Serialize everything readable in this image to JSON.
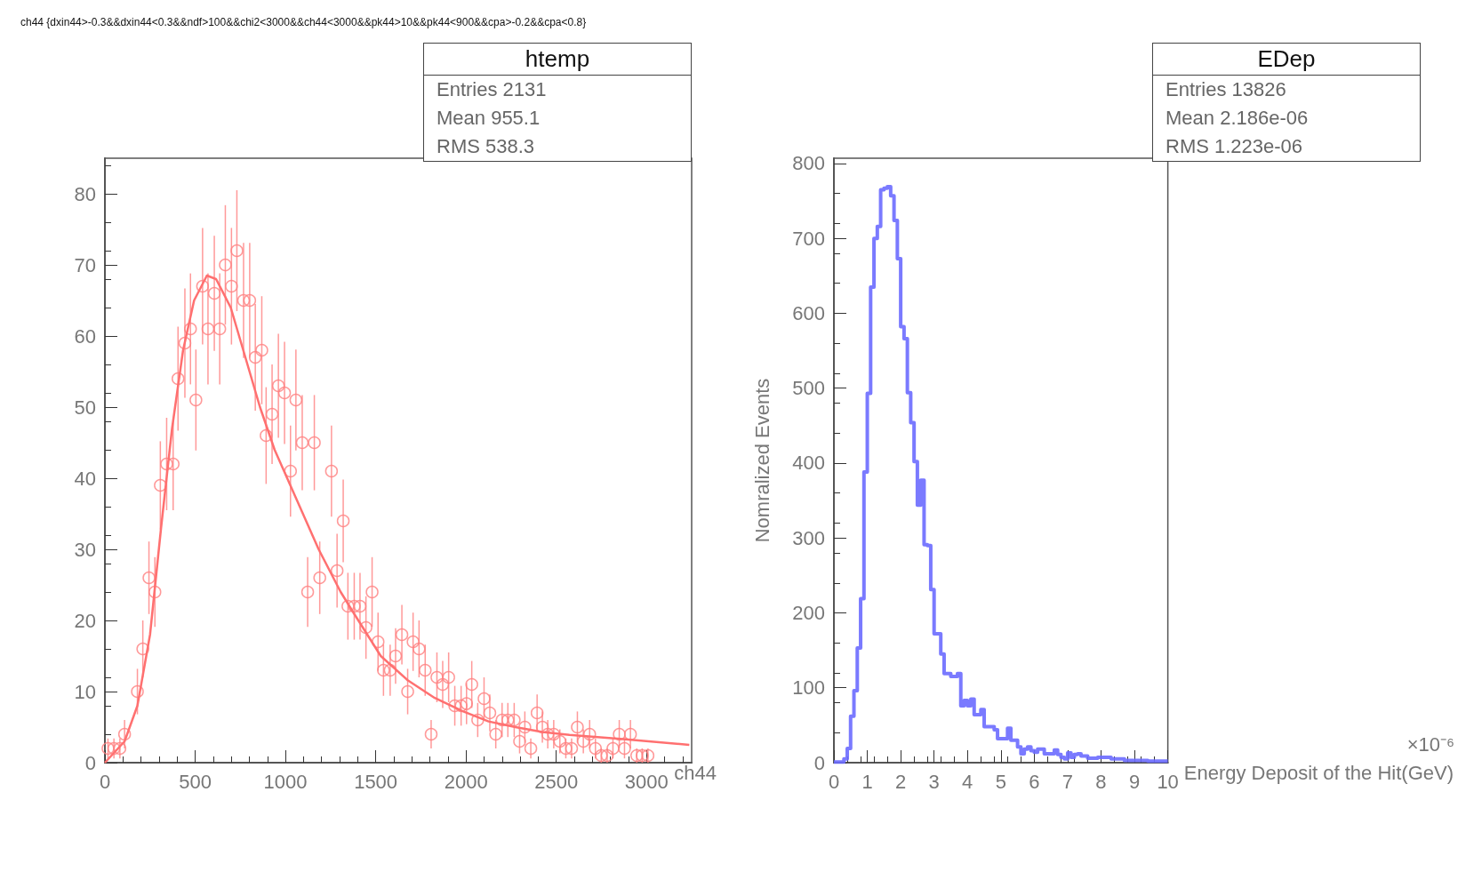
{
  "chart_data": [
    {
      "type": "scatter",
      "title": "ch44 {dxin44>-0.3&&dxin44<0.3&&ndf>100&&chi2<3000&&ch44<3000&&pk44>10&&pk44<900&&cpa>-0.2&&cpa<0.8}",
      "xlabel": "ch44",
      "xlim": [
        0,
        3250
      ],
      "xticks": [
        0,
        500,
        1000,
        1500,
        2000,
        2500,
        3000
      ],
      "ylim": [
        0,
        85
      ],
      "yticks": [
        0,
        10,
        20,
        30,
        40,
        50,
        60,
        70,
        80
      ],
      "annotations": [
        "htemp",
        "Entries 2131",
        "Mean 955.1",
        "RMS 538.3"
      ],
      "series": [
        {
          "type": "scatter",
          "color": "#ff7f7f",
          "marker": "circle",
          "x": [
            17,
            50,
            83,
            109,
            180,
            210,
            244,
            277,
            307,
            342,
            378,
            405,
            443,
            474,
            504,
            541,
            571,
            606,
            636,
            667,
            701,
            731,
            768,
            802,
            833,
            869,
            893,
            926,
            961,
            995,
            1028,
            1058,
            1093,
            1123,
            1160,
            1190,
            1255,
            1286,
            1320,
            1346,
            1381,
            1413,
            1446,
            1480,
            1513,
            1543,
            1580,
            1610,
            1645,
            1677,
            1707,
            1740,
            1774,
            1807,
            1839,
            1871,
            1904,
            1938,
            1973,
            2003,
            2032,
            2065,
            2100,
            2132,
            2165,
            2200,
            2232,
            2267,
            2297,
            2326,
            2359,
            2394,
            2423,
            2453,
            2486,
            2520,
            2553,
            2585,
            2617,
            2650,
            2685,
            2717,
            2749,
            2782,
            2814,
            2849,
            2878,
            2911,
            2946,
            2976,
            3008
          ],
          "values": [
            2,
            2,
            2,
            4,
            10,
            16,
            26,
            24,
            39,
            42,
            42,
            54,
            59,
            61,
            51,
            67,
            61,
            66,
            61,
            70,
            67,
            72,
            65,
            65,
            57,
            58,
            46,
            49,
            53,
            52,
            41,
            51,
            45,
            24,
            45,
            26,
            41,
            27,
            34,
            22,
            22,
            22,
            19,
            24,
            17,
            13,
            13,
            15,
            18,
            10,
            17,
            16,
            13,
            4,
            12,
            11,
            12,
            8,
            8,
            8.3,
            11,
            6,
            9,
            7,
            4,
            6,
            6,
            6,
            3,
            5,
            2,
            7,
            5,
            4,
            4,
            3,
            2,
            2,
            5,
            3,
            4,
            2,
            1,
            1,
            2,
            4,
            2,
            4,
            1,
            1,
            1
          ],
          "errors": [
            1.4,
            1.4,
            1.4,
            2,
            3.2,
            4,
            5.1,
            4.9,
            6.2,
            6.5,
            6.5,
            7.3,
            7.7,
            7.8,
            7.1,
            8.2,
            7.8,
            8.1,
            7.8,
            8.4,
            8.2,
            8.5,
            8.1,
            8.1,
            7.5,
            7.6,
            6.8,
            7,
            7.3,
            7.2,
            6.4,
            7.1,
            6.7,
            4.9,
            6.7,
            5.1,
            6.4,
            5.2,
            5.8,
            4.7,
            4.7,
            4.7,
            4.4,
            4.9,
            4.1,
            3.6,
            3.6,
            3.9,
            4.2,
            3.2,
            4.1,
            4,
            3.6,
            2,
            3.5,
            3.3,
            3.5,
            2.8,
            2.8,
            2.9,
            3.3,
            2.4,
            3,
            2.6,
            2,
            2.4,
            2.4,
            2.4,
            1.7,
            2.2,
            1.4,
            2.6,
            2.2,
            2,
            2,
            1.7,
            1.4,
            1.4,
            2.2,
            1.7,
            2,
            1.4,
            1,
            1,
            1.4,
            2,
            1.4,
            2,
            1,
            1,
            1
          ]
        },
        {
          "type": "line",
          "color": "#ff7070",
          "x": [
            0,
            109,
            180,
            250,
            311,
            372,
            433,
            494,
            565,
            616,
            697,
            778,
            859,
            940,
            1062,
            1184,
            1306,
            1379,
            1528,
            1677,
            1827,
            1976,
            2125,
            2274,
            2423,
            2573,
            2871,
            3237
          ],
          "values": [
            0,
            3,
            8,
            18,
            33,
            47,
            58,
            65,
            68.5,
            68,
            64,
            57,
            50,
            44,
            37,
            30,
            24,
            21,
            15,
            11.6,
            9.1,
            7.3,
            5.8,
            5,
            4.3,
            3.9,
            3.3,
            2.5
          ]
        }
      ]
    },
    {
      "type": "histogram",
      "xlabel": "Energy Deposit of the Hit(GeV)",
      "ylabel": "Nomralized Events",
      "xlim": [
        0,
        10
      ],
      "xticks": [
        0,
        1,
        2,
        3,
        4,
        5,
        6,
        7,
        8,
        9,
        10
      ],
      "ylim": [
        0,
        807
      ],
      "yticks": [
        0,
        100,
        200,
        300,
        400,
        500,
        600,
        700,
        800
      ],
      "annotations": [
        "EDep",
        "Entries 13826",
        "Mean 2.186e-06",
        "RMS 1.223e-06",
        "×10⁻⁶"
      ],
      "color": "#6b6bff",
      "bins": [
        0,
        0.1,
        0.2,
        0.3,
        0.4,
        0.5,
        0.6,
        0.7,
        0.8,
        0.9,
        1,
        1.1,
        1.2,
        1.3,
        1.4,
        1.5,
        1.6,
        1.7,
        1.8,
        1.9,
        2,
        2.1,
        2.2,
        2.3,
        2.4,
        2.5,
        2.6,
        2.7,
        2.8,
        2.9,
        3,
        3.1,
        3.2,
        3.3,
        3.4,
        3.5,
        3.6,
        3.7,
        3.8,
        3.9,
        4,
        4.1,
        4.2,
        4.3,
        4.4,
        4.5,
        4.6,
        4.7,
        4.8,
        4.9,
        5,
        5.1,
        5.2,
        5.3,
        5.4,
        5.5,
        5.6,
        5.7,
        5.8,
        5.9,
        6,
        6.1,
        6.2,
        6.3,
        6.4,
        6.5,
        6.6,
        6.7,
        6.8,
        6.9,
        7,
        7.1,
        7.2,
        7.3,
        7.4,
        7.5,
        7.6,
        7.7,
        7.8,
        7.9,
        8,
        8.1,
        8.2,
        8.3,
        8.4,
        8.5,
        8.6,
        8.7,
        8.8,
        8.9,
        9,
        9.1,
        9.2,
        9.3,
        9.4,
        9.5,
        9.6,
        9.7,
        9.8,
        9.9,
        10
      ],
      "values": [
        1,
        1,
        1,
        5,
        19,
        62,
        96,
        153,
        219,
        388,
        493,
        635,
        700,
        716,
        765,
        767,
        769,
        757,
        724,
        673,
        582,
        566,
        494,
        454,
        402,
        344,
        377,
        291,
        290,
        231,
        172,
        172,
        145,
        119,
        119,
        115,
        115,
        119,
        76,
        83,
        76,
        85,
        64,
        64,
        71,
        48,
        48,
        48,
        44,
        32,
        32,
        32,
        46,
        30,
        30,
        21,
        12,
        18,
        21,
        16,
        14,
        18,
        18,
        12,
        12,
        12,
        17,
        11,
        7,
        5,
        13,
        7,
        11,
        12,
        9,
        9,
        6,
        6,
        6,
        7,
        7,
        7,
        7,
        5,
        5,
        5,
        5,
        3,
        3,
        3,
        3,
        3,
        3,
        3,
        2,
        2,
        2,
        2,
        2,
        2
      ]
    }
  ]
}
